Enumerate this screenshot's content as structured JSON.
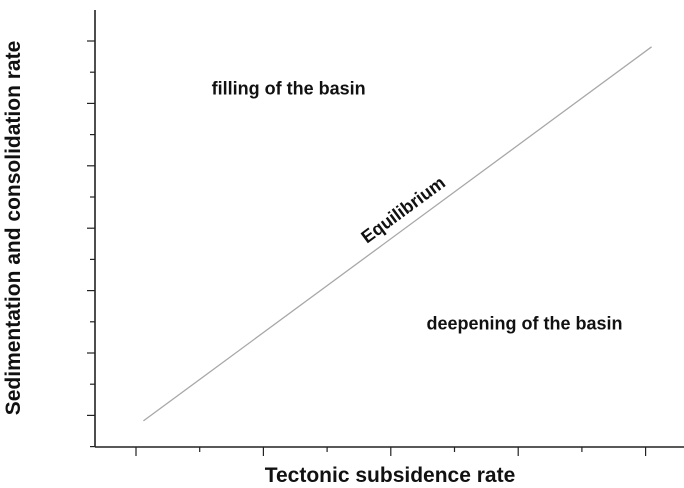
{
  "chart_data": {
    "type": "line",
    "title": "",
    "xlabel": "Tectonic subsidence rate",
    "ylabel": "Sedimentation and consolidation rate",
    "xlim": [
      0,
      1
    ],
    "ylim": [
      0,
      1
    ],
    "grid": false,
    "series": [
      {
        "label": "Equilibrium",
        "x": [
          0.08,
          0.92
        ],
        "y": [
          0.06,
          0.92
        ],
        "color": "#a8a8a8"
      }
    ],
    "annotations": [
      {
        "text": "filling of the basin",
        "x": 0.32,
        "y": 0.81
      },
      {
        "text": "deepening of the basin",
        "x": 0.71,
        "y": 0.27
      }
    ]
  }
}
